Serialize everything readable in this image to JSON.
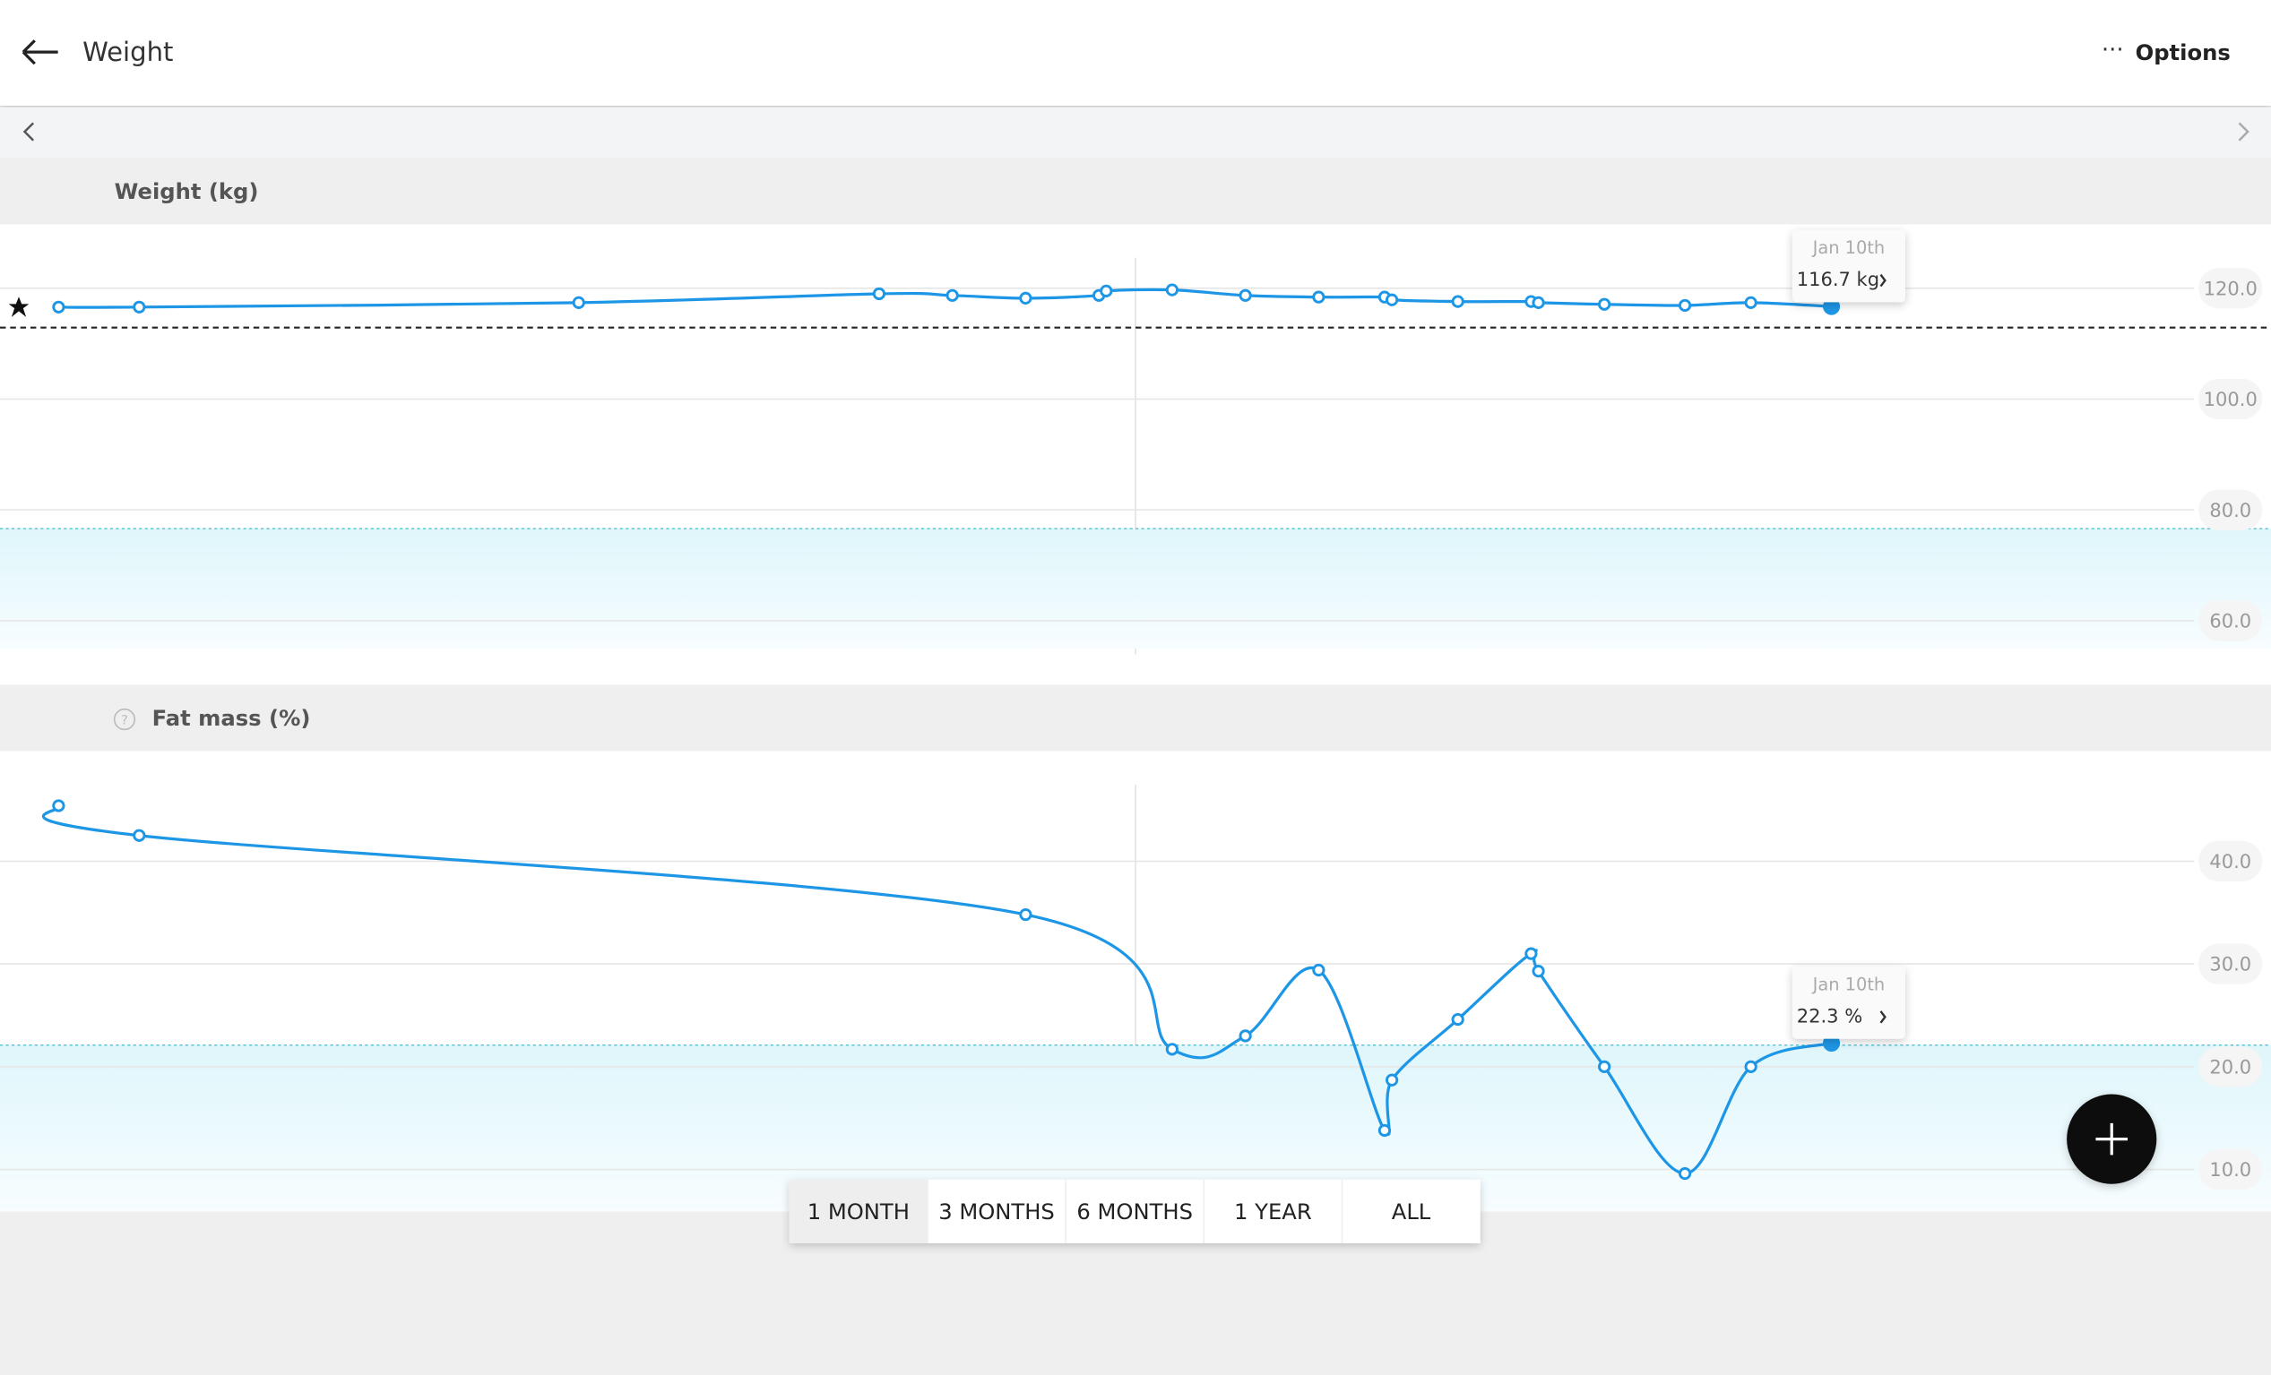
{
  "header": {
    "title": "Weight",
    "options": "Options"
  },
  "range_buttons": [
    "1 MONTH",
    "3 MONTHS",
    "6 MONTHS",
    "1 YEAR",
    "ALL"
  ],
  "chart_data": [
    {
      "type": "line",
      "title": "Weight (kg)",
      "color": "#1e96e6",
      "x": [
        0.8,
        1.9,
        7.9,
        12,
        13,
        14,
        15,
        15.1,
        16,
        17,
        18,
        18.9,
        19,
        19.9,
        20.9,
        21,
        21.9,
        23,
        23.9,
        25
      ],
      "values": [
        116.6,
        116.6,
        117.4,
        119.0,
        118.7,
        118.2,
        118.7,
        119.5,
        119.7,
        118.7,
        118.4,
        118.4,
        117.9,
        117.6,
        117.6,
        117.4,
        117.1,
        116.9,
        117.4,
        116.7
      ],
      "xlim": [
        0,
        31
      ],
      "ylim": [
        55,
        125
      ],
      "yticks": [
        {
          "value": 60,
          "label": "60.0"
        },
        {
          "value": 80,
          "label": "80.0"
        },
        {
          "value": 100,
          "label": "100.0"
        },
        {
          "value": 120,
          "label": "120.0"
        }
      ],
      "grid": true,
      "band_upper": 76.6,
      "goal_line": 112.9,
      "tooltip": {
        "date": "Jan 10th",
        "label": "116.7 kg"
      }
    },
    {
      "type": "line",
      "title": "Fat mass (%)",
      "color": "#1e96e6",
      "x": [
        0.8,
        1.9,
        14,
        16,
        17,
        18,
        18.9,
        19,
        19.9,
        20.9,
        21,
        21.9,
        23,
        23.9,
        25
      ],
      "values": [
        45.4,
        42.5,
        34.8,
        21.7,
        23.0,
        29.4,
        13.8,
        18.7,
        24.6,
        31.0,
        29.3,
        20.0,
        9.6,
        20.0,
        22.3
      ],
      "xlim": [
        0,
        31
      ],
      "ylim": [
        6,
        50
      ],
      "yticks": [
        {
          "value": 10,
          "label": "10.0"
        },
        {
          "value": 20,
          "label": "20.0"
        },
        {
          "value": 30,
          "label": "30.0"
        },
        {
          "value": 40,
          "label": "40.0"
        }
      ],
      "grid": true,
      "band_upper": 22.1,
      "tooltip": {
        "date": "Jan 10th",
        "label": "22.3 %"
      }
    }
  ]
}
